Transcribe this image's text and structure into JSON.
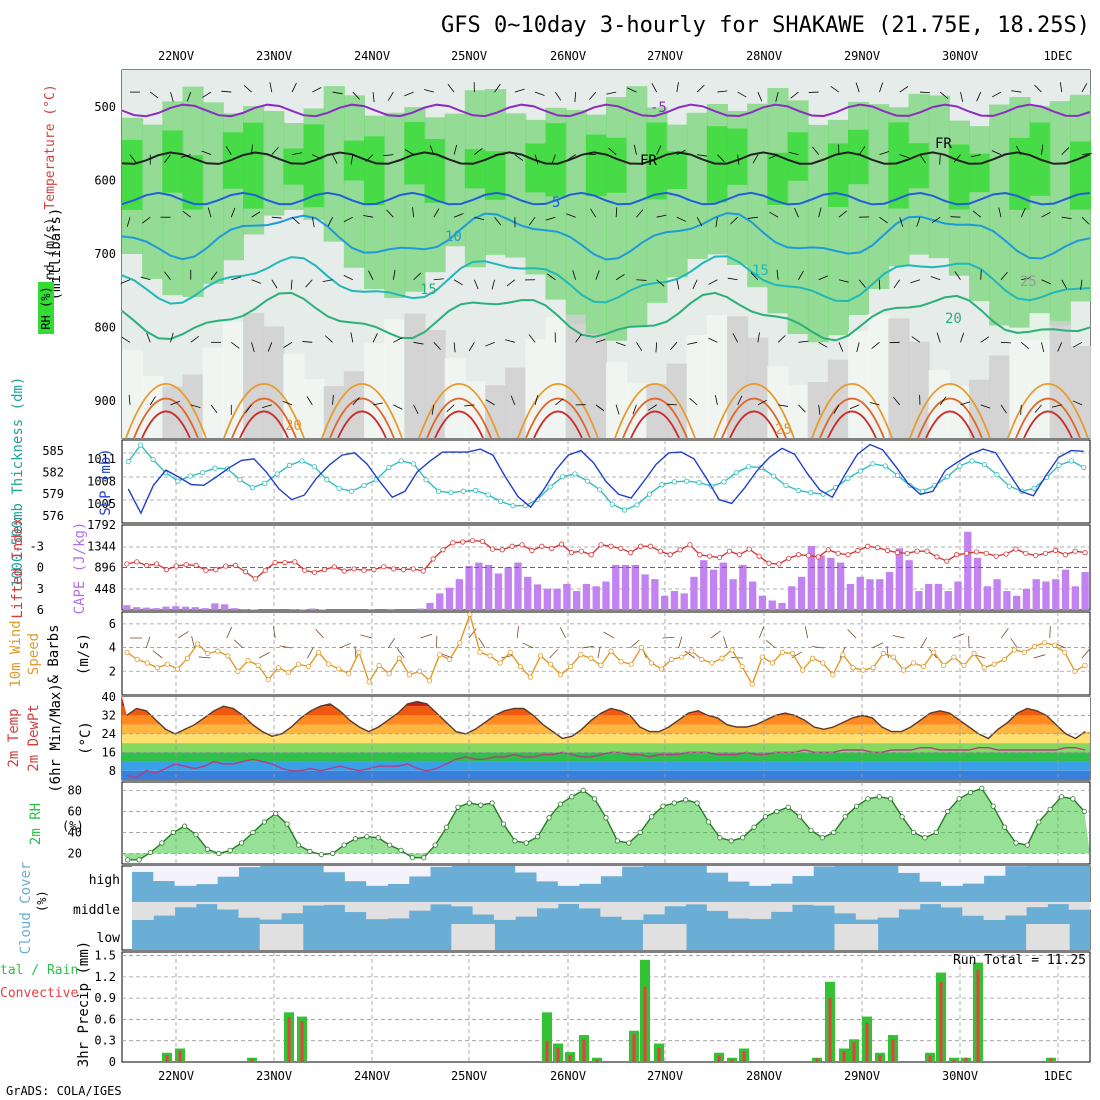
{
  "header": {
    "title": "GFS 0~10day 3-hourly for SHAKAWE (21.75E, 18.25S)",
    "credit": "GrADS: COLA/IGES"
  },
  "colors": {
    "green_dark": "#19c219",
    "green": "#34db34",
    "green_med": "#7fd87f",
    "green_light": "#c8e6c8",
    "grey": "#d0d0d0",
    "grey_light": "#e6ecea",
    "slp_line": "#1f3fcc",
    "thick_line": "#33bdbd",
    "li_line": "#d83a3a",
    "cape_bar": "#c283f0",
    "wind_line": "#e09a2b",
    "rh_fill": "#3fc93f",
    "cloud_blue": "#6aaed6",
    "cloud_grey": "#e0e0e0",
    "precip_total": "#33c233",
    "precip_conv": "#e64040"
  },
  "chart_data": [
    {
      "type": "heatmap",
      "panel": "upper-air",
      "ylabel": "(millibars)",
      "y_ticks": [
        "500",
        "600",
        "700",
        "800",
        "900"
      ],
      "x_ticks": [
        "22NOV",
        "23NOV",
        "24NOV",
        "25NOV",
        "26NOV",
        "27NOV",
        "28NOV",
        "29NOV",
        "30NOV",
        "1DEC"
      ],
      "labels": {
        "rh": "RH (%)",
        "temperature": "Temperature (°C)",
        "wind": "Wind (m/s)"
      },
      "contour_labels": [
        "-5",
        "FR",
        "FR",
        "5",
        "10",
        "15",
        "15",
        "20",
        "20",
        "25",
        "25",
        "56"
      ]
    },
    {
      "type": "line",
      "panel": "slp-thickness",
      "ylabel_left": "1000-500mb Thickness (dm)",
      "ylabel_right": "SLP (mb)",
      "left_ticks": [
        "585",
        "582",
        "579",
        "576"
      ],
      "right_ticks": [
        "1011",
        "1008",
        "1005"
      ],
      "ylim_slp": [
        1002.5,
        1013.5
      ],
      "ylim_thickness": [
        575,
        586.5
      ],
      "series": [
        {
          "name": "SLP (mb)",
          "values": [
            1007.0,
            1003.8,
            1007.5,
            1009.5,
            1008.6,
            1007.6,
            1007.5,
            1008.6,
            1009.8,
            1010.8,
            1011.0,
            1009.2,
            1007.0,
            1005.6,
            1006.2,
            1008.5,
            1010.2,
            1011.5,
            1011.8,
            1010.3,
            1008.0,
            1005.9,
            1006.7,
            1009.3,
            1010.7,
            1011.9,
            1011.9,
            1011.9,
            1012.3,
            1011.5,
            1008.6,
            1006.0,
            1004.6,
            1006.8,
            1009.5,
            1011.5,
            1012.1,
            1010.5,
            1008.0,
            1006.3,
            1005.8,
            1008.0,
            1010.3,
            1011.8,
            1011.9,
            1011.0,
            1008.4,
            1005.6,
            1005.1,
            1007.1,
            1009.4,
            1011.2,
            1012.4,
            1011.6,
            1009.1,
            1006.9,
            1005.9,
            1008.9,
            1011.6,
            1012.9,
            1012.2,
            1010.1,
            1007.8,
            1006.3,
            1006.7,
            1009.5,
            1010.6,
            1011.6,
            1012.3,
            1011.8,
            1009.2,
            1006.7,
            1006.1,
            1008.8,
            1011.2,
            1012.1,
            1012.0
          ]
        },
        {
          "name": "1000-500mb Thickness (dm)",
          "values": [
            583.5,
            585.8,
            583.8,
            582.0,
            580.8,
            581.5,
            582.0,
            582.6,
            582.5,
            581.0,
            579.9,
            580.5,
            581.8,
            583.0,
            583.6,
            582.8,
            581.0,
            579.8,
            579.4,
            580.2,
            581.0,
            582.7,
            583.6,
            583.2,
            581.0,
            579.4,
            579.2,
            579.4,
            579.5,
            578.9,
            578.0,
            577.4,
            577.4,
            578.3,
            580.0,
            581.4,
            581.8,
            580.8,
            579.6,
            577.6,
            576.8,
            577.5,
            579.0,
            580.3,
            580.7,
            580.8,
            580.6,
            580.1,
            580.7,
            582.0,
            582.8,
            582.7,
            581.5,
            580.2,
            579.5,
            579.2,
            579.0,
            579.9,
            581.2,
            582.2,
            583.2,
            582.9,
            581.6,
            580.2,
            579.4,
            580.2,
            581.4,
            582.9,
            583.6,
            583.1,
            581.7,
            580.1,
            579.4,
            579.8,
            581.3,
            583.0,
            583.6,
            582.7
          ]
        }
      ]
    },
    {
      "type": "bar",
      "panel": "cape-lifted-index",
      "ylabel_left": "Lifted Index",
      "ylabel_right": "CAPE (J/kg)",
      "li_ticks": [
        "-3",
        "0",
        "3",
        "6"
      ],
      "cape_ticks": [
        "1792",
        "1344",
        "896",
        "448"
      ],
      "ylim_cape": [
        0,
        1792
      ],
      "ylim_li": [
        6,
        -6
      ],
      "series": [
        {
          "name": "CAPE (J/kg)",
          "values": [
            100,
            60,
            50,
            40,
            70,
            80,
            70,
            60,
            40,
            140,
            120,
            40,
            20,
            10,
            0,
            0,
            0,
            20,
            10,
            30,
            10,
            0,
            0,
            0,
            0,
            20,
            0,
            20,
            0,
            0,
            30,
            150,
            350,
            470,
            650,
            930,
            1000,
            950,
            770,
            900,
            1000,
            700,
            540,
            450,
            450,
            550,
            400,
            550,
            500,
            600,
            950,
            950,
            950,
            750,
            650,
            300,
            400,
            350,
            700,
            1050,
            850,
            1000,
            650,
            950,
            600,
            300,
            200,
            150,
            500,
            700,
            1350,
            1150,
            1100,
            1000,
            550,
            700,
            650,
            650,
            800,
            1300,
            1050,
            400,
            550,
            550,
            400,
            600,
            1650,
            1100,
            500,
            650,
            400,
            300,
            450,
            650,
            600,
            650,
            850,
            500,
            800
          ]
        },
        {
          "name": "Lifted Index",
          "values": [
            -0.5,
            -0.8,
            -0.3,
            -0.5,
            0.3,
            -0.2,
            -0.4,
            -0.3,
            0.4,
            0.3,
            -0.2,
            -0.3,
            0.6,
            1.6,
            0.4,
            -0.7,
            -0.7,
            -0.8,
            0.4,
            0.7,
            0.3,
            -0.1,
            0.5,
            0.2,
            0.4,
            0.3,
            -0.1,
            0.2,
            0.3,
            0.2,
            0.5,
            -1.2,
            -2.5,
            -3.5,
            -3.6,
            -3.8,
            -3.7,
            -2.6,
            -2.5,
            -3.0,
            -3.2,
            -2.4,
            -3.0,
            -2.7,
            -3.3,
            -2.1,
            -2.3,
            -1.8,
            -3.2,
            -3.0,
            -2.7,
            -2.1,
            -3.0,
            -3.0,
            -2.3,
            -1.8,
            -2.5,
            -3.2,
            -1.8,
            -1.6,
            -1.4,
            -2.3,
            -1.8,
            -2.6,
            -1.6,
            -0.6,
            -0.5,
            -1.3,
            -1.8,
            -1.7,
            -1.5,
            -2.5,
            -2.0,
            -1.8,
            -2.4,
            -3.0,
            -2.8,
            -2.4,
            -2.1,
            -2.0,
            -2.3,
            -2.3,
            -1.5,
            -0.9,
            -1.8,
            -2.0,
            -2.2,
            -2.0,
            -1.6,
            -1.9,
            -2.6,
            -2.0,
            -1.7,
            -2.0,
            -2.4,
            -1.8,
            -2.3,
            -2.1
          ]
        }
      ]
    },
    {
      "type": "line",
      "panel": "10m-wind",
      "ylabel": "10m Wind Speed & Barbs (m/s)",
      "y_ticks": [
        "6",
        "4",
        "2"
      ],
      "ylim": [
        0,
        7
      ],
      "series": [
        {
          "name": "10m Wind Speed (m/s)",
          "values": [
            3.6,
            3.0,
            2.7,
            2.3,
            2.6,
            2.2,
            3.1,
            4.3,
            3.5,
            3.7,
            3.3,
            2.0,
            2.9,
            2.5,
            1.3,
            2.3,
            1.9,
            2.6,
            2.4,
            3.6,
            2.6,
            2.2,
            1.8,
            3.6,
            1.1,
            2.5,
            1.8,
            3.1,
            1.7,
            2.0,
            1.2,
            3.4,
            3.0,
            4.4,
            6.8,
            3.6,
            3.3,
            2.7,
            3.6,
            2.4,
            1.5,
            3.3,
            2.6,
            1.7,
            2.4,
            3.4,
            3.1,
            2.5,
            3.7,
            2.8,
            2.6,
            4.0,
            2.7,
            2.2,
            3.0,
            3.2,
            3.7,
            3.0,
            2.7,
            3.1,
            3.8,
            2.4,
            0.9,
            3.2,
            2.7,
            3.6,
            3.5,
            2.1,
            3.1,
            2.7,
            1.7,
            3.4,
            2.3,
            2.1,
            2.3,
            3.5,
            3.2,
            2.1,
            2.7,
            2.4,
            3.6,
            2.5,
            3.2,
            2.5,
            3.5,
            2.3,
            2.6,
            3.0,
            3.8,
            3.6,
            4.1,
            4.4,
            4.2,
            3.6,
            2.0,
            2.5
          ]
        }
      ]
    },
    {
      "type": "area",
      "panel": "2m-temp",
      "ylabel": "2m Temp / 2m DewPt (6hr Min/Max) (°C)",
      "y_ticks": [
        "40",
        "32",
        "24",
        "16",
        "8"
      ],
      "ylim": [
        4,
        40
      ],
      "series": [
        {
          "name": "2m Temp (°C)",
          "values": [
            32,
            35,
            34,
            30,
            26,
            24,
            26,
            28,
            31,
            34,
            36,
            35,
            32,
            28,
            25,
            23,
            24,
            27,
            31,
            34,
            36,
            37,
            34,
            30,
            27,
            25,
            27,
            30,
            33,
            37,
            38,
            37,
            33,
            29,
            25,
            24,
            26,
            29,
            32,
            34,
            35,
            35,
            32,
            28,
            25,
            22,
            23,
            26,
            30,
            33,
            35,
            34,
            32,
            27,
            25,
            25,
            27,
            30,
            33,
            34,
            32,
            31,
            28,
            27,
            27,
            28,
            30,
            32,
            33,
            32,
            30,
            27,
            26,
            27,
            29,
            31,
            32,
            31,
            27,
            25,
            25,
            27,
            30,
            33,
            34,
            33,
            30,
            27,
            24,
            22,
            26,
            29,
            33,
            35,
            34,
            32,
            28,
            24,
            22,
            25
          ]
        },
        {
          "name": "2m DewPt (°C)",
          "values": [
            6,
            5,
            8,
            7,
            9,
            11,
            10,
            9,
            10,
            12,
            11,
            11,
            12,
            13,
            12,
            11,
            9,
            8,
            8,
            9,
            8,
            9,
            10,
            9,
            8,
            9,
            10,
            10,
            10,
            11,
            9,
            8,
            9,
            11,
            13,
            14,
            13,
            13,
            14,
            14,
            15,
            14,
            14,
            15,
            15,
            16,
            15,
            14,
            14,
            15,
            16,
            16,
            15,
            15,
            14,
            15,
            15,
            15,
            16,
            16,
            16,
            15,
            15,
            15,
            16,
            15,
            15,
            16,
            16,
            16,
            17,
            16,
            16,
            16,
            17,
            17,
            17,
            16,
            16,
            17,
            17,
            17,
            18,
            18,
            17,
            17,
            17,
            17,
            18,
            18,
            17,
            17,
            17,
            17,
            17,
            17,
            17,
            18,
            18,
            17
          ]
        }
      ]
    },
    {
      "type": "area",
      "panel": "2m-rh",
      "ylabel": "2m RH (%)",
      "y_ticks": [
        "80",
        "60",
        "40",
        "20"
      ],
      "ylim": [
        10,
        88
      ],
      "series": [
        {
          "name": "2m RH (%)",
          "values": [
            14,
            14,
            21,
            30,
            40,
            46,
            38,
            24,
            20,
            23,
            30,
            40,
            50,
            58,
            48,
            28,
            22,
            19,
            20,
            28,
            34,
            36,
            35,
            28,
            23,
            16,
            16,
            28,
            45,
            64,
            68,
            66,
            68,
            48,
            32,
            30,
            36,
            54,
            67,
            74,
            80,
            72,
            54,
            32,
            30,
            40,
            55,
            65,
            68,
            71,
            68,
            50,
            35,
            32,
            35,
            45,
            55,
            60,
            64,
            55,
            42,
            35,
            40,
            55,
            65,
            72,
            74,
            72,
            55,
            40,
            35,
            40,
            60,
            72,
            78,
            82,
            65,
            45,
            30,
            28,
            50,
            62,
            74,
            72,
            60
          ]
        }
      ]
    },
    {
      "type": "table",
      "panel": "cloud-cover",
      "ylabel": "Cloud Cover (%)",
      "levels": [
        "high",
        "middle",
        "low"
      ]
    },
    {
      "type": "bar",
      "panel": "3hr-precip",
      "ylabel": "3hr Precip (mm)",
      "legend": [
        "Total / Rain",
        "Convective"
      ],
      "y_ticks": [
        "1.5",
        "1.2",
        "0.9",
        "0.6",
        "0.3",
        "0"
      ],
      "ylim": [
        0,
        1.55
      ],
      "annotation": "Run Total = 11.25",
      "series": [
        {
          "name": "Total / Rain",
          "values": [
            0.13,
            0.19,
            0.06,
            0.7,
            0.64,
            0.7,
            0.26,
            0.14,
            0.38,
            0.06,
            0.44,
            1.44,
            0.26,
            0.13,
            0.06,
            0.19,
            0.06,
            1.13,
            0.19,
            0.32,
            0.64,
            0.13,
            0.38,
            0.13,
            1.26,
            0.06,
            0.06,
            1.4,
            0.06
          ]
        },
        {
          "name": "Convective",
          "values": [
            0.1,
            0.16,
            0.04,
            0.63,
            0.58,
            0.3,
            0.2,
            0.1,
            0.32,
            0.03,
            0.4,
            1.06,
            0.2,
            0.09,
            0.04,
            0.15,
            0.05,
            0.9,
            0.15,
            0.28,
            0.55,
            0.1,
            0.32,
            0.09,
            1.13,
            0.03,
            0.06,
            1.3,
            0.05
          ]
        }
      ]
    }
  ]
}
